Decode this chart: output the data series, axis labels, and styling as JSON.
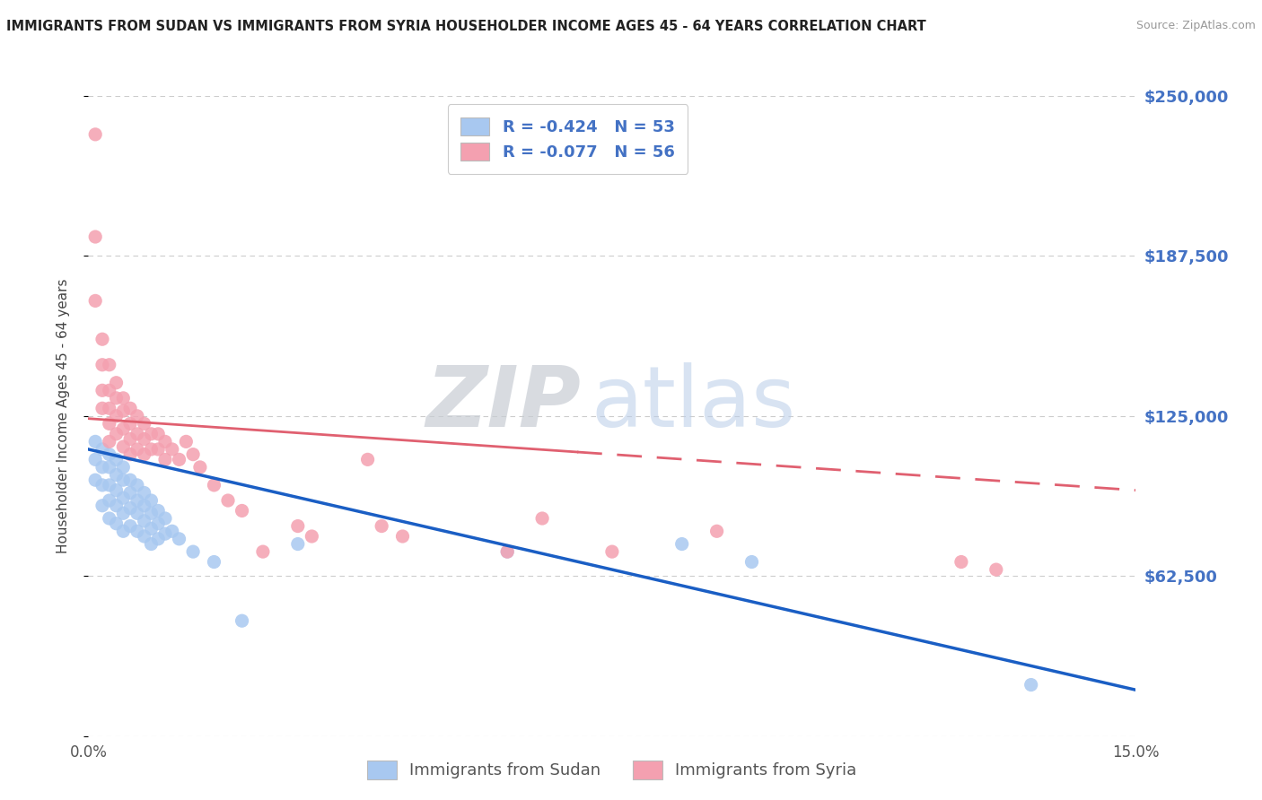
{
  "title": "IMMIGRANTS FROM SUDAN VS IMMIGRANTS FROM SYRIA HOUSEHOLDER INCOME AGES 45 - 64 YEARS CORRELATION CHART",
  "source": "Source: ZipAtlas.com",
  "ylabel": "Householder Income Ages 45 - 64 years",
  "x_min": 0.0,
  "x_max": 0.15,
  "y_min": 0,
  "y_max": 250000,
  "yticks": [
    0,
    62500,
    125000,
    187500,
    250000
  ],
  "ytick_labels": [
    "",
    "$62,500",
    "$125,000",
    "$187,500",
    "$250,000"
  ],
  "legend_labels": [
    "Immigrants from Sudan",
    "Immigrants from Syria"
  ],
  "legend_R": [
    "-0.424",
    "-0.077"
  ],
  "legend_N": [
    "53",
    "56"
  ],
  "color_sudan": "#a8c8f0",
  "color_syria": "#f4a0b0",
  "line_color_sudan": "#1a5ec4",
  "line_color_syria": "#e06070",
  "background_color": "#ffffff",
  "watermark_zip": "ZIP",
  "watermark_atlas": "atlas",
  "sudan_x": [
    0.001,
    0.001,
    0.001,
    0.002,
    0.002,
    0.002,
    0.002,
    0.003,
    0.003,
    0.003,
    0.003,
    0.003,
    0.004,
    0.004,
    0.004,
    0.004,
    0.004,
    0.005,
    0.005,
    0.005,
    0.005,
    0.005,
    0.006,
    0.006,
    0.006,
    0.006,
    0.007,
    0.007,
    0.007,
    0.007,
    0.008,
    0.008,
    0.008,
    0.008,
    0.009,
    0.009,
    0.009,
    0.009,
    0.01,
    0.01,
    0.01,
    0.011,
    0.011,
    0.012,
    0.013,
    0.015,
    0.018,
    0.022,
    0.03,
    0.06,
    0.085,
    0.095,
    0.135
  ],
  "sudan_y": [
    115000,
    108000,
    100000,
    112000,
    105000,
    98000,
    90000,
    110000,
    105000,
    98000,
    92000,
    85000,
    108000,
    102000,
    96000,
    90000,
    83000,
    105000,
    100000,
    93000,
    87000,
    80000,
    100000,
    95000,
    89000,
    82000,
    98000,
    92000,
    87000,
    80000,
    95000,
    90000,
    84000,
    78000,
    92000,
    87000,
    81000,
    75000,
    88000,
    83000,
    77000,
    85000,
    79000,
    80000,
    77000,
    72000,
    68000,
    45000,
    75000,
    72000,
    75000,
    68000,
    20000
  ],
  "syria_x": [
    0.001,
    0.001,
    0.001,
    0.002,
    0.002,
    0.002,
    0.002,
    0.003,
    0.003,
    0.003,
    0.003,
    0.003,
    0.004,
    0.004,
    0.004,
    0.004,
    0.005,
    0.005,
    0.005,
    0.005,
    0.006,
    0.006,
    0.006,
    0.006,
    0.007,
    0.007,
    0.007,
    0.008,
    0.008,
    0.008,
    0.009,
    0.009,
    0.01,
    0.01,
    0.011,
    0.011,
    0.012,
    0.013,
    0.014,
    0.015,
    0.016,
    0.018,
    0.02,
    0.022,
    0.025,
    0.03,
    0.032,
    0.04,
    0.042,
    0.045,
    0.06,
    0.065,
    0.075,
    0.09,
    0.125,
    0.13
  ],
  "syria_y": [
    235000,
    195000,
    170000,
    155000,
    145000,
    135000,
    128000,
    145000,
    135000,
    128000,
    122000,
    115000,
    138000,
    132000,
    125000,
    118000,
    132000,
    127000,
    120000,
    113000,
    128000,
    122000,
    116000,
    110000,
    125000,
    118000,
    112000,
    122000,
    116000,
    110000,
    118000,
    112000,
    118000,
    112000,
    115000,
    108000,
    112000,
    108000,
    115000,
    110000,
    105000,
    98000,
    92000,
    88000,
    72000,
    82000,
    78000,
    108000,
    82000,
    78000,
    72000,
    85000,
    72000,
    80000,
    68000,
    65000
  ],
  "sudan_line_x0": 0.0,
  "sudan_line_x1": 0.15,
  "sudan_line_y0": 112000,
  "sudan_line_y1": 18000,
  "syria_line_x0": 0.0,
  "syria_line_x1": 0.15,
  "syria_line_y0": 124000,
  "syria_line_y1": 96000
}
